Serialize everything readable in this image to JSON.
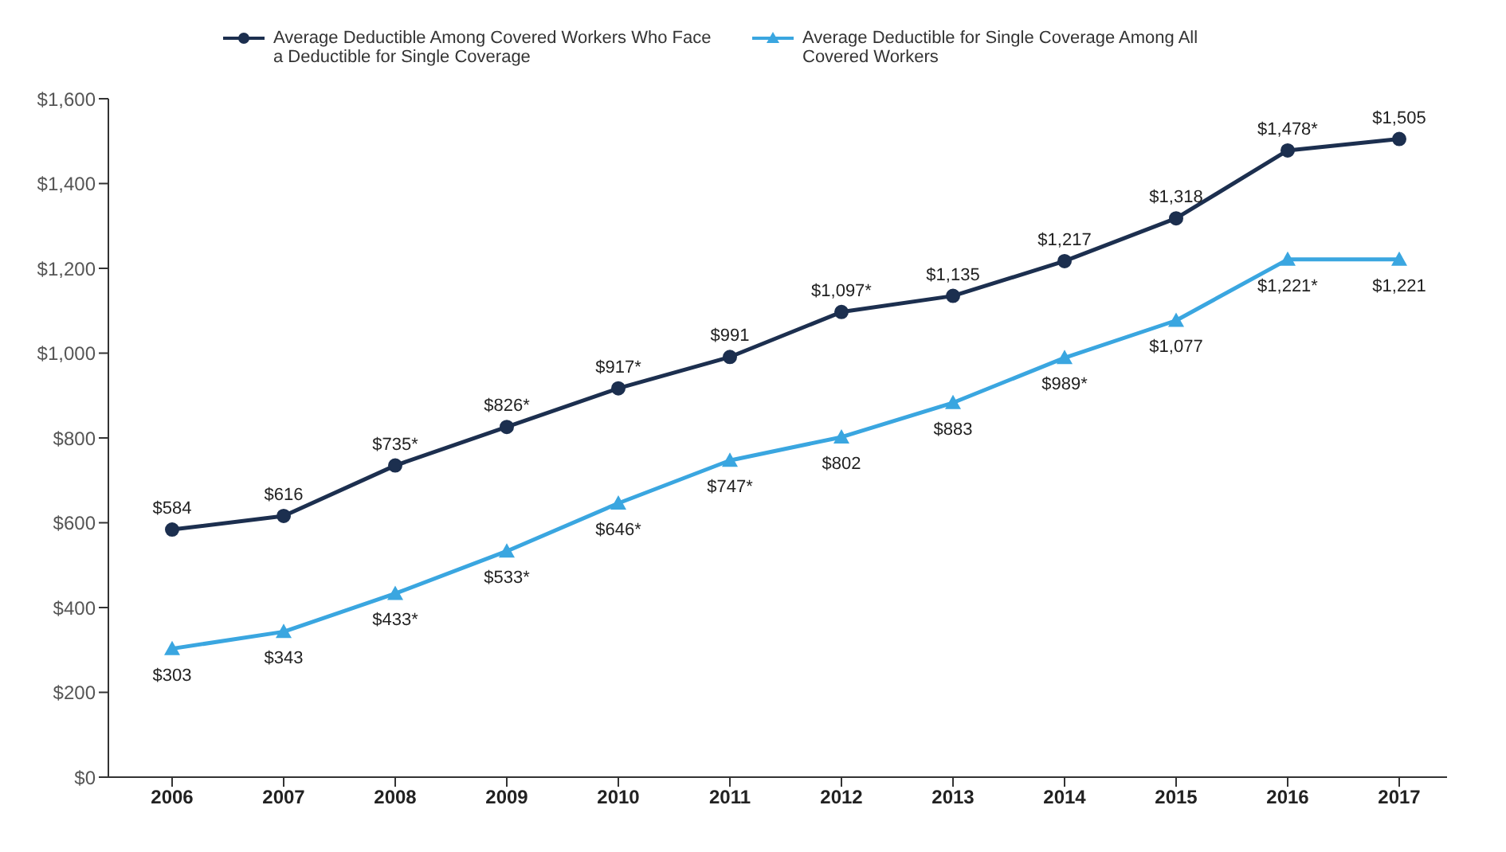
{
  "chart_data": {
    "type": "line",
    "categories": [
      "2006",
      "2007",
      "2008",
      "2009",
      "2010",
      "2011",
      "2012",
      "2013",
      "2014",
      "2015",
      "2016",
      "2017"
    ],
    "series": [
      {
        "name": "Average Deductible Among Covered Workers Who Face a Deductible for Single Coverage",
        "color": "#1c2f4f",
        "marker": "circle",
        "values": [
          584,
          616,
          735,
          826,
          917,
          991,
          1097,
          1135,
          1217,
          1318,
          1478,
          1505
        ],
        "value_labels": [
          "$584",
          "$616",
          "$735*",
          "$826*",
          "$917*",
          "$991",
          "$1,097*",
          "$1,135",
          "$1,217",
          "$1,318",
          "$1,478*",
          "$1,505"
        ]
      },
      {
        "name": "Average Deductible for Single Coverage Among All Covered Workers",
        "color": "#3aa6e0",
        "marker": "triangle",
        "values": [
          303,
          343,
          433,
          533,
          646,
          747,
          802,
          883,
          989,
          1077,
          1221,
          1221
        ],
        "value_labels": [
          "$303",
          "$343",
          "$433*",
          "$533*",
          "$646*",
          "$747*",
          "$802",
          "$883",
          "$989*",
          "$1,077",
          "$1,221*",
          "$1,221"
        ]
      }
    ],
    "ylim": [
      0,
      1600
    ],
    "yticks": [
      {
        "value": 0,
        "label": "$0"
      },
      {
        "value": 200,
        "label": "$200"
      },
      {
        "value": 400,
        "label": "$400"
      },
      {
        "value": 600,
        "label": "$600"
      },
      {
        "value": 800,
        "label": "$800"
      },
      {
        "value": 1000,
        "label": "$1,000"
      },
      {
        "value": 1200,
        "label": "$1,200"
      },
      {
        "value": 1400,
        "label": "$1,400"
      },
      {
        "value": 1600,
        "label": "$1,600"
      }
    ],
    "grid": false,
    "legend": "top"
  }
}
